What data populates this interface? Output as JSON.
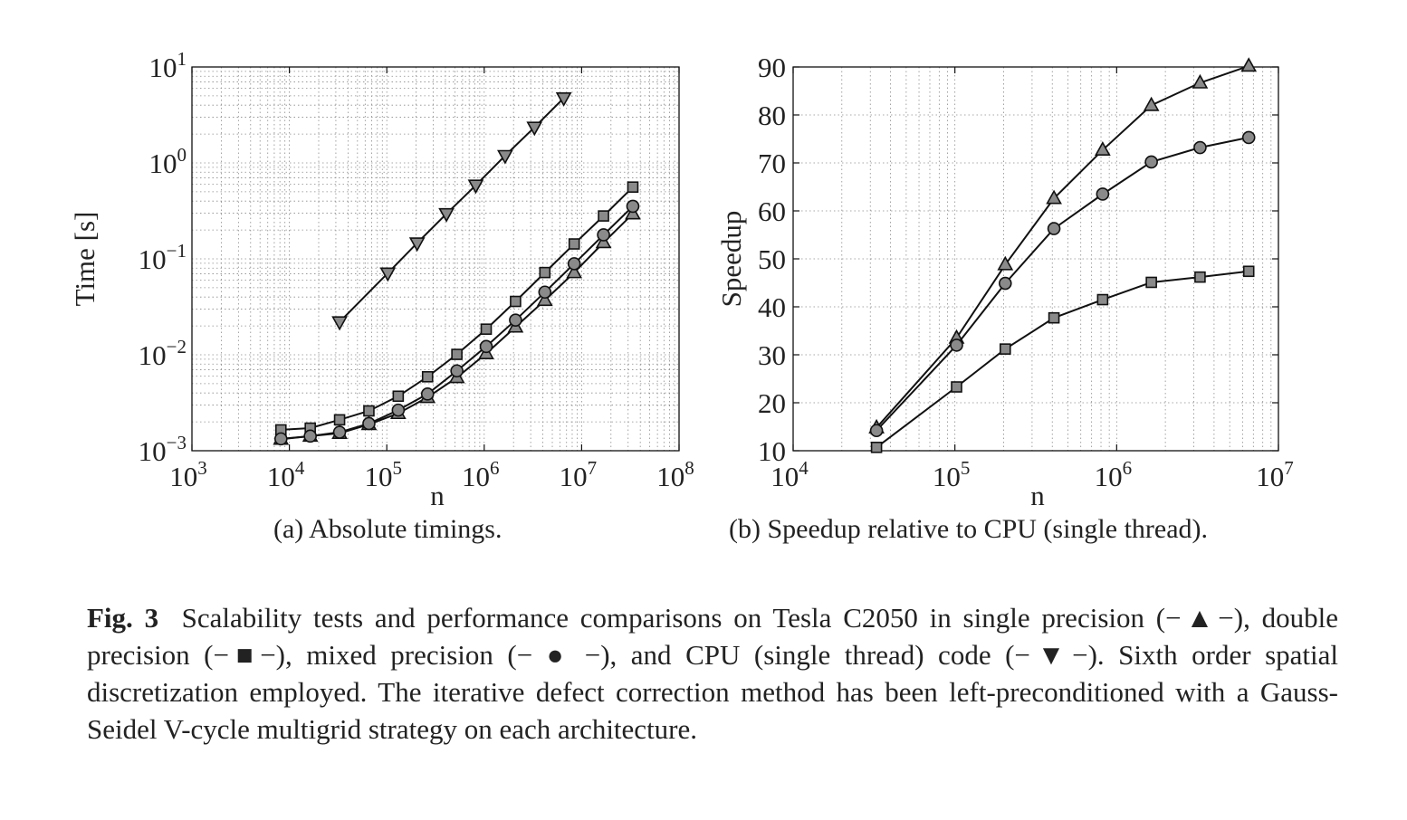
{
  "chart_data": [
    {
      "type": "line",
      "panel": "a",
      "xlabel": "n",
      "ylabel": "Time [s]",
      "xscale": "log",
      "yscale": "log",
      "xlim": [
        1000,
        100000000
      ],
      "ylim": [
        0.001,
        10
      ],
      "grid": true,
      "x_ticks": [
        {
          "base": "10",
          "exp": "3"
        },
        {
          "base": "10",
          "exp": "4"
        },
        {
          "base": "10",
          "exp": "5"
        },
        {
          "base": "10",
          "exp": "6"
        },
        {
          "base": "10",
          "exp": "7"
        },
        {
          "base": "10",
          "exp": "8"
        }
      ],
      "y_ticks": [
        {
          "base": "10",
          "exp": "−3"
        },
        {
          "base": "10",
          "exp": "−2"
        },
        {
          "base": "10",
          "exp": "−1"
        },
        {
          "base": "10",
          "exp": "0"
        },
        {
          "base": "10",
          "exp": "1"
        }
      ],
      "series": [
        {
          "marker": "triangle-up",
          "x": [
            8192,
            16384,
            32768,
            65536,
            131072,
            262144,
            524288,
            1048576,
            2097152,
            4194304,
            8388608,
            16777216,
            33554432
          ],
          "y": [
            0.00132,
            0.00142,
            0.00152,
            0.00188,
            0.00245,
            0.0036,
            0.0058,
            0.0103,
            0.0195,
            0.037,
            0.072,
            0.148,
            0.295
          ]
        },
        {
          "marker": "square",
          "x": [
            8192,
            16384,
            32768,
            65536,
            131072,
            262144,
            524288,
            1048576,
            2097152,
            4194304,
            8388608,
            16777216,
            33554432
          ],
          "y": [
            0.00165,
            0.00172,
            0.0021,
            0.0026,
            0.0037,
            0.0059,
            0.0101,
            0.0185,
            0.036,
            0.072,
            0.143,
            0.28,
            0.56
          ]
        },
        {
          "marker": "circle",
          "x": [
            8192,
            16384,
            32768,
            65536,
            131072,
            262144,
            524288,
            1048576,
            2097152,
            4194304,
            8388608,
            16777216,
            33554432
          ],
          "y": [
            0.00133,
            0.00142,
            0.00156,
            0.00192,
            0.00265,
            0.0039,
            0.0068,
            0.0122,
            0.023,
            0.045,
            0.089,
            0.178,
            0.353
          ]
        },
        {
          "marker": "triangle-down",
          "x": [
            32768,
            102400,
            204800,
            409600,
            819200,
            1638400,
            3276800,
            6553600
          ],
          "y": [
            0.022,
            0.071,
            0.146,
            0.295,
            0.585,
            1.19,
            2.35,
            4.75
          ]
        }
      ]
    },
    {
      "type": "line",
      "panel": "b",
      "xlabel": "n",
      "ylabel": "Speedup",
      "xscale": "log",
      "xlim": [
        10000,
        10000000
      ],
      "ylim": [
        10,
        90
      ],
      "grid": true,
      "x_ticks": [
        {
          "base": "10",
          "exp": "4"
        },
        {
          "base": "10",
          "exp": "5"
        },
        {
          "base": "10",
          "exp": "6"
        },
        {
          "base": "10",
          "exp": "7"
        }
      ],
      "y_ticks": [
        "10",
        "20",
        "30",
        "40",
        "50",
        "60",
        "70",
        "80",
        "90"
      ],
      "series": [
        {
          "marker": "triangle-up",
          "x": [
            32768,
            102400,
            204800,
            409600,
            819200,
            1638400,
            3276800,
            6553600
          ],
          "y": [
            14.8,
            33.5,
            48.8,
            62.6,
            72.7,
            82.0,
            86.7,
            90.2
          ]
        },
        {
          "marker": "circle",
          "x": [
            32768,
            102400,
            204800,
            409600,
            819200,
            1638400,
            3276800,
            6553600
          ],
          "y": [
            14.2,
            32.0,
            44.9,
            56.3,
            63.5,
            70.2,
            73.2,
            75.3
          ]
        },
        {
          "marker": "square",
          "x": [
            32768,
            102400,
            204800,
            409600,
            819200,
            1638400,
            3276800,
            6553600
          ],
          "y": [
            10.7,
            23.3,
            31.2,
            37.7,
            41.5,
            45.1,
            46.2,
            47.4
          ]
        }
      ]
    }
  ],
  "subcaptions": {
    "a": "(a)  Absolute timings.",
    "b": "(b)  Speedup relative to CPU (single thread)."
  },
  "caption": {
    "label": "Fig. 3",
    "text": "Scalability tests and performance comparisons on Tesla C2050 in single precision (−▲−), double precision (−■−), mixed precision (− ● −), and CPU (single thread) code (−▼−). Sixth order spatial discretization employed. The iterative defect correction method has been left-preconditioned with a Gauss-Seidel V-cycle multigrid strategy on each architecture."
  }
}
